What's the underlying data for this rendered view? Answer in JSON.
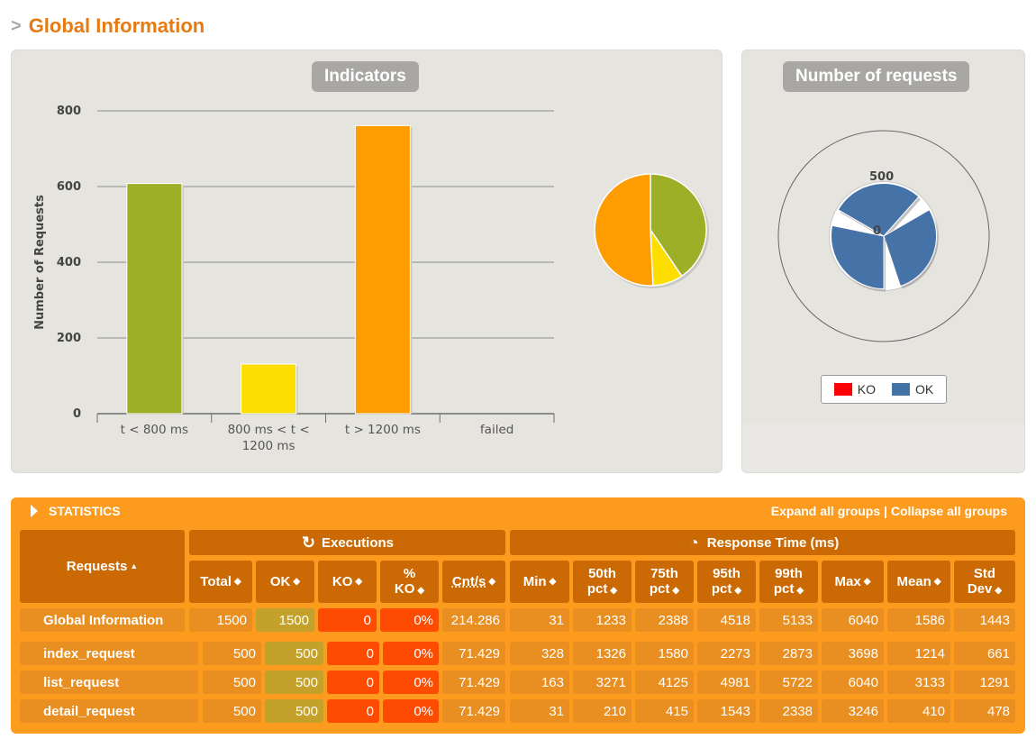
{
  "page": {
    "chevron": ">",
    "title": "Global Information"
  },
  "indicators": {
    "title": "Indicators",
    "chart_data": {
      "type": "bar",
      "ylabel": "Number of Requests",
      "ylim": [
        0,
        800
      ],
      "yticks": [
        "0",
        "200",
        "400",
        "600",
        "800"
      ],
      "categories": [
        "t < 800 ms",
        "800 ms < t < 1200 ms",
        "t > 1200 ms",
        "failed"
      ],
      "category_lines": [
        [
          "t < 800 ms"
        ],
        [
          "800 ms < t <",
          "1200 ms"
        ],
        [
          "t > 1200 ms"
        ],
        [
          "failed"
        ]
      ],
      "values": [
        608,
        131,
        761,
        0
      ],
      "colors": [
        "#9caf26",
        "#fedd00",
        "#ff9c00",
        "#ff0000"
      ],
      "grid": true
    },
    "pie_data": {
      "type": "pie",
      "values": [
        608,
        131,
        761,
        0
      ],
      "colors": [
        "#9caf26",
        "#fedd00",
        "#ff9c00",
        "#ff0000"
      ]
    }
  },
  "requests": {
    "title": "Number of requests",
    "chart_data": {
      "type": "pie",
      "subtype": "polar-area",
      "categories": [
        "index_request",
        "list_request",
        "detail_request"
      ],
      "series": [
        {
          "name": "KO",
          "values": [
            0,
            0,
            0
          ],
          "color": "#ff0000"
        },
        {
          "name": "OK",
          "values": [
            500,
            500,
            500
          ],
          "color": "#4572a7"
        }
      ],
      "radial_ticks": [
        "0",
        "500"
      ],
      "legend": "bottom"
    },
    "legend": [
      {
        "label": "KO",
        "color": "#ff0000"
      },
      {
        "label": "OK",
        "color": "#4572a7"
      }
    ]
  },
  "statistics": {
    "title": "STATISTICS",
    "expand_label": "Expand all groups",
    "separator": "|",
    "collapse_label": "Collapse all groups",
    "sort_icon": "▲▼",
    "headers": {
      "requests": "Requests",
      "executions": "Executions",
      "response_time": "Response Time (ms)",
      "total": "Total",
      "ok": "OK",
      "ko": "KO",
      "pct_ko_1": "%",
      "pct_ko_2": "KO",
      "cnt": "Cnt/s",
      "min": "Min",
      "p50_1": "50th",
      "p50_2": "pct",
      "p75_1": "75th",
      "p75_2": "pct",
      "p95_1": "95th",
      "p95_2": "pct",
      "p99_1": "99th",
      "p99_2": "pct",
      "max": "Max",
      "mean": "Mean",
      "std_1": "Std",
      "std_2": "Dev"
    },
    "rows": [
      {
        "name": "Global Information",
        "total": "1500",
        "ok": "1500",
        "ko": "0",
        "pct_ko": "0%",
        "cnt": "214.286",
        "min": "31",
        "p50": "1233",
        "p75": "2388",
        "p95": "4518",
        "p99": "5133",
        "max": "6040",
        "mean": "1586",
        "std": "1443"
      },
      {
        "name": "index_request",
        "total": "500",
        "ok": "500",
        "ko": "0",
        "pct_ko": "0%",
        "cnt": "71.429",
        "min": "328",
        "p50": "1326",
        "p75": "1580",
        "p95": "2273",
        "p99": "2873",
        "max": "3698",
        "mean": "1214",
        "std": "661"
      },
      {
        "name": "list_request",
        "total": "500",
        "ok": "500",
        "ko": "0",
        "pct_ko": "0%",
        "cnt": "71.429",
        "min": "163",
        "p50": "3271",
        "p75": "4125",
        "p95": "4981",
        "p99": "5722",
        "max": "6040",
        "mean": "3133",
        "std": "1291"
      },
      {
        "name": "detail_request",
        "total": "500",
        "ok": "500",
        "ko": "0",
        "pct_ko": "0%",
        "cnt": "71.429",
        "min": "31",
        "p50": "210",
        "p75": "415",
        "p95": "1543",
        "p99": "2338",
        "max": "3246",
        "mean": "410",
        "std": "478"
      }
    ]
  }
}
